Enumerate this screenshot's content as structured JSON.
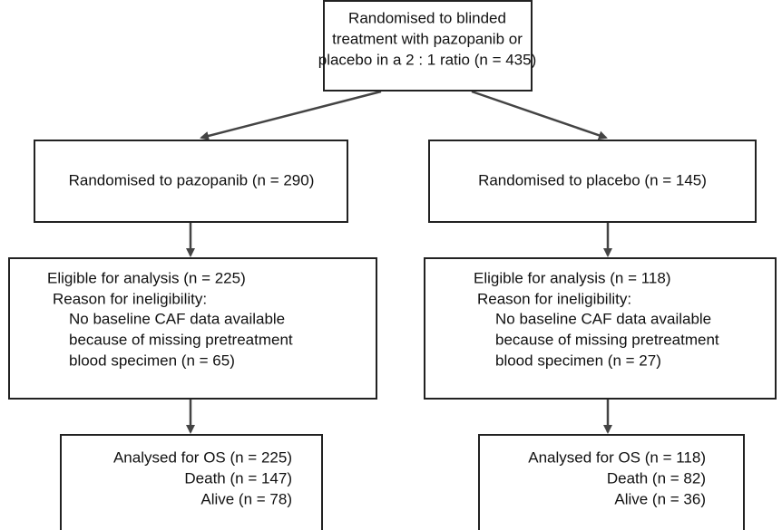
{
  "nodes": [
    {
      "lines": [
        "Randomised to blinded",
        "treatment with pazopanib or",
        "placebo in a 2 : 1 ratio (n = 435)"
      ]
    },
    {
      "lines": [
        "Randomised to pazopanib (n = 290)"
      ]
    },
    {
      "lines": [
        "Randomised to placebo (n = 145)"
      ]
    },
    {
      "lines": [
        "Eligible for analysis (n = 225)",
        "Reason for ineligibility:",
        "No baseline CAF data available",
        "because of missing pretreatment",
        "blood specimen (n = 65)"
      ]
    },
    {
      "lines": [
        "Eligible for analysis (n = 118)",
        "Reason for ineligibility:",
        "No baseline CAF data available",
        "because of missing pretreatment",
        "blood specimen (n = 27)"
      ]
    },
    {
      "lines": [
        "Analysed for OS (n = 225)",
        "Death (n = 147)",
        "Alive (n = 78)"
      ]
    },
    {
      "lines": [
        "Analysed for OS (n = 118)",
        "Death (n = 82)",
        "Alive (n = 36)"
      ]
    }
  ]
}
